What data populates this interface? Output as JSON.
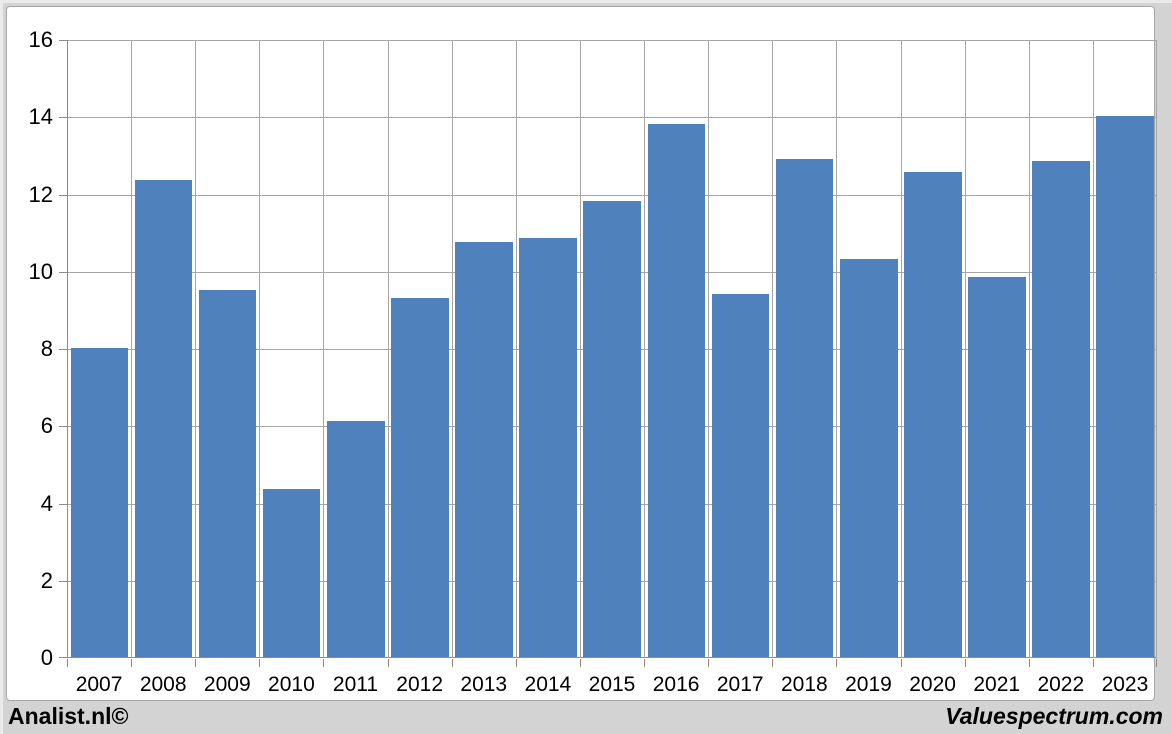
{
  "chart_data": {
    "type": "bar",
    "categories": [
      "2007",
      "2008",
      "2009",
      "2010",
      "2011",
      "2012",
      "2013",
      "2014",
      "2015",
      "2016",
      "2017",
      "2018",
      "2019",
      "2020",
      "2021",
      "2022",
      "2023"
    ],
    "values": [
      8.0,
      12.35,
      9.5,
      4.35,
      6.1,
      9.3,
      10.75,
      10.85,
      11.8,
      13.8,
      9.4,
      12.9,
      10.3,
      12.55,
      9.85,
      12.85,
      14.0
    ],
    "title": "",
    "xlabel": "",
    "ylabel": "",
    "ylim": [
      0,
      16
    ],
    "y_tick_step": 2,
    "y_tick_labels": [
      "0",
      "2",
      "4",
      "6",
      "8",
      "10",
      "12",
      "14",
      "16"
    ],
    "grid": true,
    "legend": "none",
    "bar_color": "#4f81bd",
    "gridline_color": "#a6a6a6",
    "axis_color": "#8a8a8a",
    "plot_background": "#ffffff",
    "chart_background": "#d3d3d3"
  },
  "footer": {
    "left": "Analist.nl©",
    "right": "Valuespectrum.com"
  }
}
